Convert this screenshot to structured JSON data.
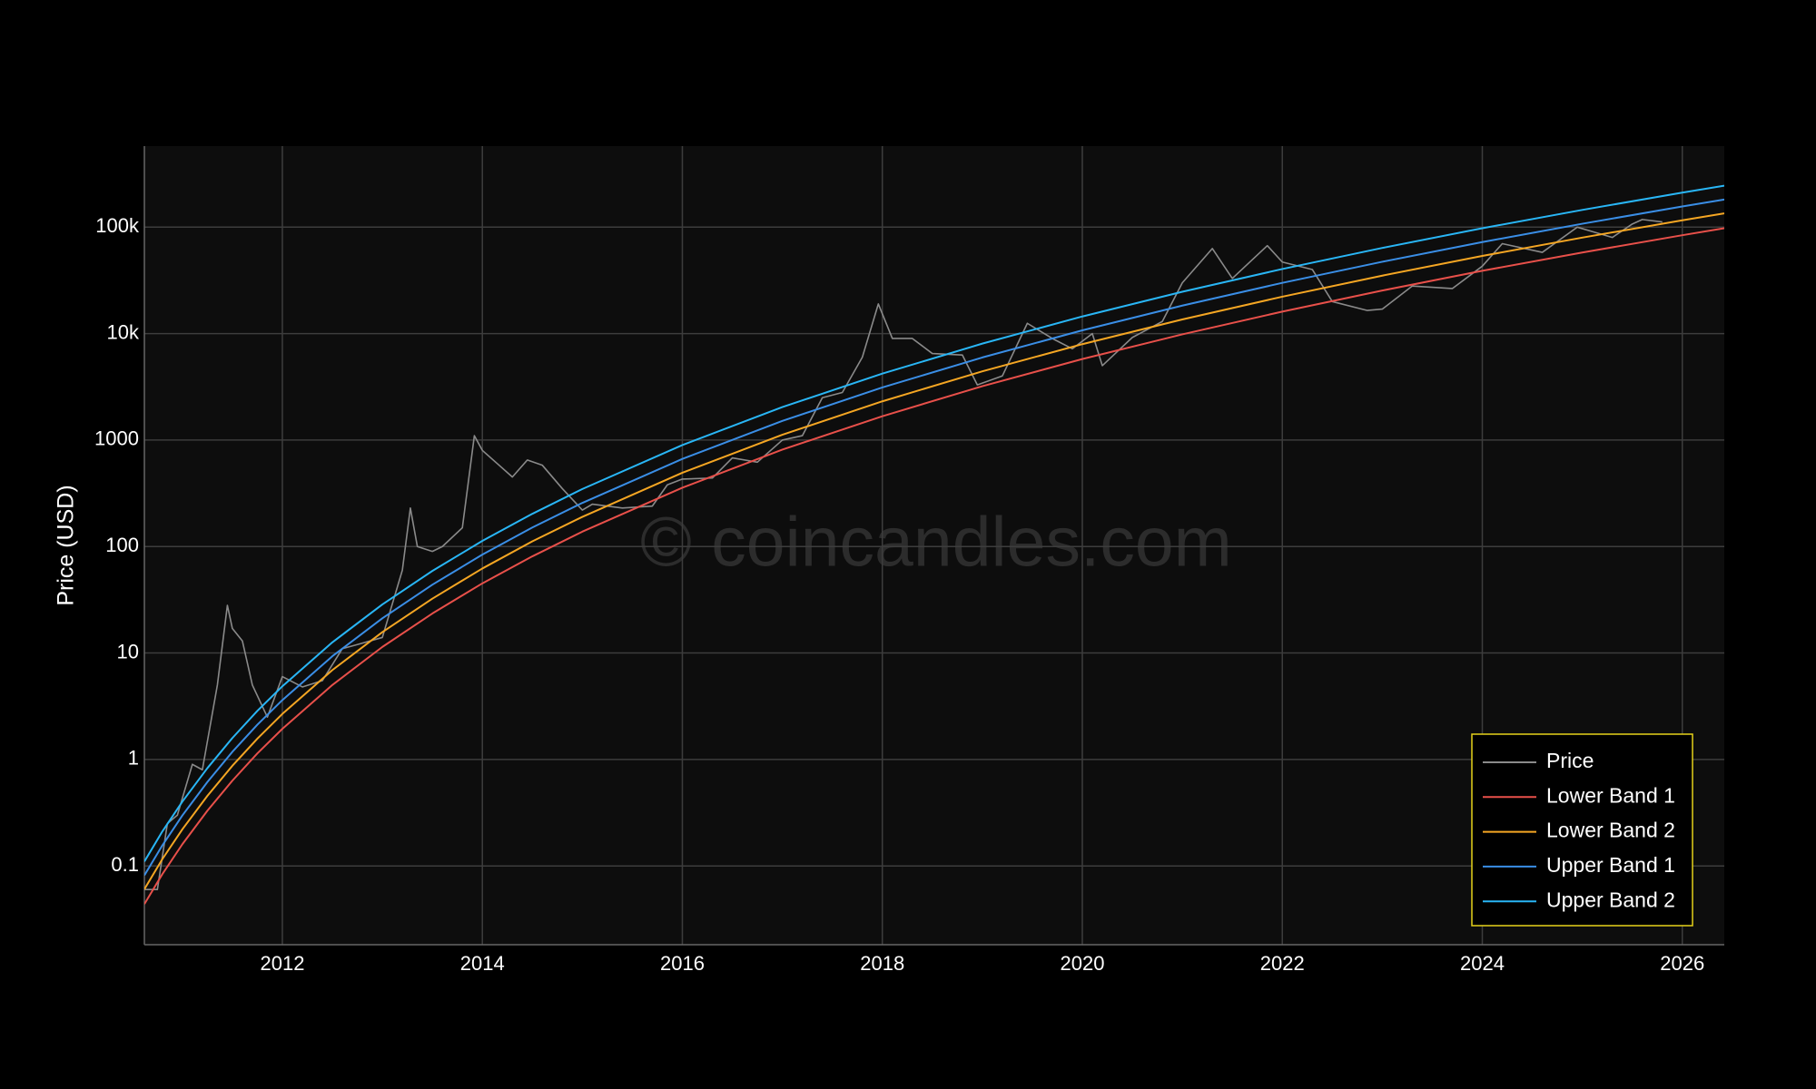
{
  "chart_data": {
    "type": "line",
    "y_label": "Price (USD)",
    "watermark": "© coincandles.com",
    "log_y": true,
    "grid": true,
    "legend": "lower right",
    "xlim": [
      2010.62,
      2026.42
    ],
    "xticks": [
      2012,
      2014,
      2016,
      2018,
      2020,
      2022,
      2024,
      2026
    ],
    "ylim": [
      0.0182,
      577000
    ],
    "yticks": [
      0.1,
      1,
      10,
      100,
      1000,
      {
        "value": 10000,
        "label": "10k"
      },
      {
        "value": 100000,
        "label": "100k"
      }
    ],
    "series": [
      {
        "name": "Price",
        "color": "#8a8a8a",
        "x": [
          2010.62,
          2010.75,
          2010.85,
          2010.95,
          2011.1,
          2011.2,
          2011.35,
          2011.45,
          2011.5,
          2011.6,
          2011.7,
          2011.85,
          2012.0,
          2012.2,
          2012.4,
          2012.6,
          2012.75,
          2013.0,
          2013.2,
          2013.28,
          2013.35,
          2013.5,
          2013.6,
          2013.8,
          2013.92,
          2014.0,
          2014.15,
          2014.3,
          2014.45,
          2014.6,
          2014.8,
          2015.0,
          2015.1,
          2015.4,
          2015.7,
          2015.85,
          2016.0,
          2016.3,
          2016.5,
          2016.75,
          2017.0,
          2017.2,
          2017.4,
          2017.6,
          2017.8,
          2017.96,
          2018.1,
          2018.3,
          2018.5,
          2018.8,
          2018.95,
          2019.2,
          2019.45,
          2019.7,
          2019.9,
          2020.1,
          2020.2,
          2020.5,
          2020.8,
          2021.0,
          2021.3,
          2021.5,
          2021.85,
          2022.0,
          2022.3,
          2022.5,
          2022.85,
          2023.0,
          2023.3,
          2023.7,
          2024.0,
          2024.2,
          2024.6,
          2024.95,
          2025.3,
          2025.5,
          2025.6,
          2025.8
        ],
        "values": [
          0.06,
          0.06,
          0.25,
          0.3,
          0.9,
          0.8,
          5,
          28,
          17,
          13,
          5,
          2.5,
          6,
          4.8,
          5.5,
          11,
          12,
          14,
          60,
          230,
          100,
          90,
          100,
          150,
          1100,
          800,
          600,
          450,
          650,
          580,
          350,
          220,
          250,
          230,
          240,
          380,
          430,
          440,
          680,
          620,
          1000,
          1100,
          2500,
          2800,
          6000,
          19000,
          9000,
          9000,
          6500,
          6300,
          3300,
          4000,
          12500,
          9000,
          7200,
          10000,
          5000,
          9200,
          13000,
          30000,
          63000,
          33000,
          67000,
          47000,
          40000,
          20000,
          16500,
          17000,
          28000,
          26500,
          43000,
          70000,
          58000,
          100000,
          80000,
          107000,
          118000,
          112000
        ]
      },
      {
        "name": "Lower Band 1",
        "color": "#e8504a",
        "x": [
          2010.62,
          2010.8,
          2011.0,
          2011.25,
          2011.5,
          2011.75,
          2012,
          2012.5,
          2013,
          2013.5,
          2014,
          2014.5,
          2015,
          2016,
          2017,
          2018,
          2019,
          2020,
          2021,
          2022,
          2023,
          2024,
          2025,
          2026,
          2026.42
        ],
        "values": [
          0.0438,
          0.0838,
          0.16,
          0.33,
          0.632,
          1.14,
          1.94,
          5.01,
          11.4,
          23.5,
          45.1,
          80.9,
          138,
          357,
          813,
          1675,
          3206,
          5770,
          9840,
          16100,
          25400,
          38900,
          57800,
          84000,
          97700
        ]
      },
      {
        "name": "Lower Band 2",
        "color": "#f5a623",
        "x": [
          2010.62,
          2010.8,
          2011.0,
          2011.25,
          2011.5,
          2011.75,
          2012,
          2012.5,
          2013,
          2013.5,
          2014,
          2014.5,
          2015,
          2016,
          2017,
          2018,
          2019,
          2020,
          2021,
          2022,
          2023,
          2024,
          2025,
          2026,
          2026.42
        ],
        "values": [
          0.0604,
          0.116,
          0.221,
          0.455,
          0.872,
          1.57,
          2.68,
          6.91,
          15.7,
          32.4,
          62.2,
          112,
          190,
          493,
          1122,
          2312,
          4424,
          7963,
          13580,
          22220,
          35050,
          53680,
          79760,
          115900,
          134800
        ]
      },
      {
        "name": "Upper Band 1",
        "color": "#3a8ee6",
        "x": [
          2010.62,
          2010.8,
          2011.0,
          2011.25,
          2011.5,
          2011.75,
          2012,
          2012.5,
          2013,
          2013.5,
          2014,
          2014.5,
          2015,
          2016,
          2017,
          2018,
          2019,
          2020,
          2021,
          2022,
          2023,
          2024,
          2025,
          2026,
          2026.42
        ],
        "values": [
          0.0816,
          0.156,
          0.298,
          0.614,
          1.18,
          2.12,
          3.61,
          9.33,
          21.2,
          43.8,
          84.0,
          151,
          257,
          665,
          1514,
          3119,
          5970,
          10740,
          18320,
          29980,
          47290,
          72430,
          107600,
          156400,
          181900
        ]
      },
      {
        "name": "Upper Band 2",
        "color": "#29b6f6",
        "x": [
          2010.62,
          2010.8,
          2011.0,
          2011.25,
          2011.5,
          2011.75,
          2012,
          2012.5,
          2013,
          2013.5,
          2014,
          2014.5,
          2015,
          2016,
          2017,
          2018,
          2019,
          2020,
          2021,
          2022,
          2023,
          2024,
          2025,
          2026,
          2026.42
        ],
        "values": [
          0.11,
          0.211,
          0.402,
          0.829,
          1.59,
          2.86,
          4.87,
          12.6,
          28.6,
          59.0,
          113,
          203,
          347,
          897,
          2042,
          4208,
          8054,
          14490,
          24720,
          40440,
          63800,
          97710,
          145200,
          211000,
          245400
        ]
      }
    ]
  }
}
